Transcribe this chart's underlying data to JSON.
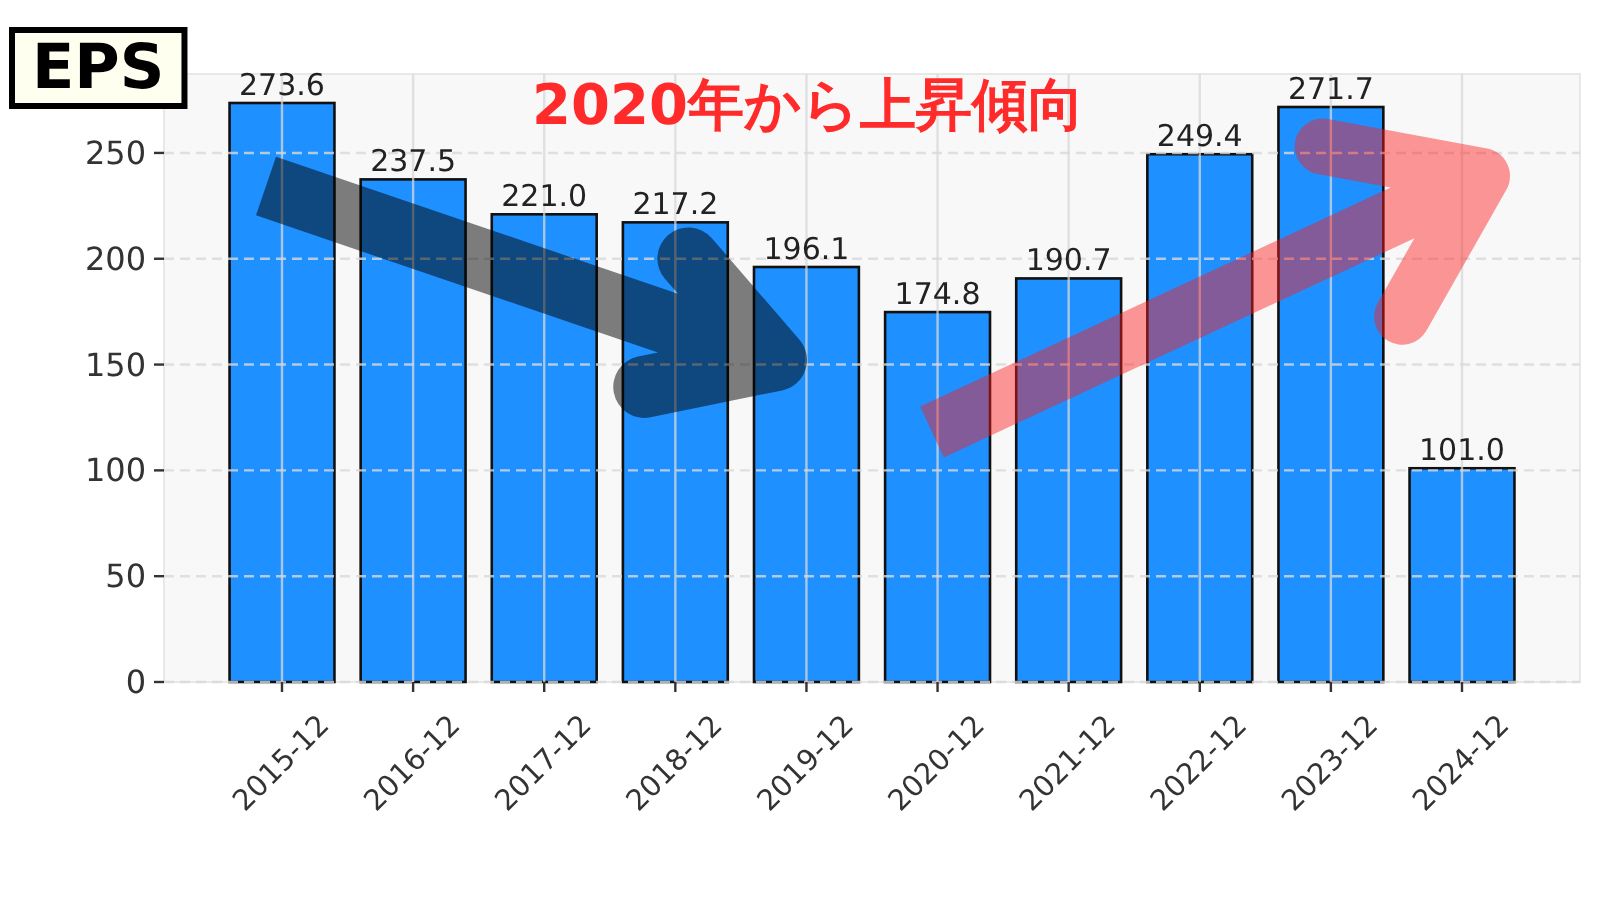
{
  "chart_data": {
    "type": "bar",
    "title": "EPS",
    "annotations": [
      "2020年から上昇傾向"
    ],
    "categories": [
      "2015-12",
      "2016-12",
      "2017-12",
      "2018-12",
      "2019-12",
      "2020-12",
      "2021-12",
      "2022-12",
      "2023-12",
      "2024-12"
    ],
    "values": [
      273.6,
      237.5,
      221.0,
      217.2,
      196.1,
      174.8,
      190.7,
      249.4,
      271.7,
      101.0
    ],
    "value_labels": [
      "273.6",
      "237.5",
      "221.0",
      "217.2",
      "196.1",
      "174.8",
      "190.7",
      "249.4",
      "271.7",
      "101.0"
    ],
    "color": "#1e90ff",
    "ylim": [
      0,
      287.3
    ],
    "yticks": [
      0,
      50,
      100,
      150,
      200,
      250
    ],
    "grid": true
  }
}
